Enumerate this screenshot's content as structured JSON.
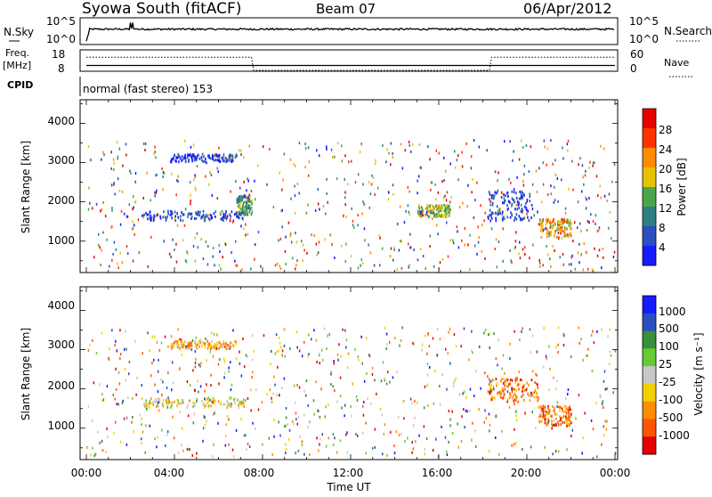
{
  "header": {
    "station": "Syowa South (fitACF)",
    "beam": "Beam 07",
    "date": "06/Apr/2012"
  },
  "noise_panel": {
    "left_label": "N.Sky",
    "right_label": "N.Search",
    "left_ticks": [
      "10^5",
      "10^0"
    ],
    "right_ticks": [
      "10^5",
      "10^0"
    ]
  },
  "freq_panel": {
    "left_label_1": "Freq.",
    "left_label_2": "[MHz]",
    "right_label": "Nave",
    "left_ticks": [
      "18",
      "8"
    ],
    "right_ticks": [
      "60",
      "0"
    ]
  },
  "cpid": {
    "label": "CPID",
    "mode": "normal (fast stereo) 153"
  },
  "power_panel": {
    "ylabel": "Slant Range [km]",
    "yticks": [
      "4000",
      "3000",
      "2000",
      "1000"
    ],
    "colorbar_label": "Power [dB]",
    "colorbar_ticks": [
      "28",
      "24",
      "20",
      "16",
      "12",
      "8",
      "4"
    ],
    "colors": [
      "#1a1aff",
      "#2a4fbf",
      "#2f7f7f",
      "#4aa64a",
      "#e6c200",
      "#ff8c00",
      "#ff3300",
      "#e60000"
    ]
  },
  "velocity_panel": {
    "ylabel": "Slant Range [km]",
    "yticks": [
      "4000",
      "3000",
      "2000",
      "1000"
    ],
    "colorbar_label": "Velocity [m s⁻¹]",
    "colorbar_ticks": [
      "1000",
      "500",
      "100",
      "25",
      "-25",
      "-100",
      "-500",
      "-1000"
    ],
    "colors": [
      "#1a1aff",
      "#2a4fbf",
      "#3a8f3a",
      "#66cc33",
      "#c8c8c8",
      "#f5d000",
      "#ff8c00",
      "#ff5500",
      "#e60000"
    ]
  },
  "xaxis": {
    "label": "Time UT",
    "ticks": [
      "00:00",
      "04:00",
      "08:00",
      "12:00",
      "16:00",
      "20:00",
      "00:00"
    ]
  },
  "chart_data": [
    {
      "type": "line",
      "title": "Syowa South (fitACF) Beam 07 06/Apr/2012",
      "series": [
        {
          "name": "N.Sky",
          "x_hours": [
            0,
            0.2,
            2.0,
            2.2,
            3.0,
            8.0,
            12.0,
            16.0,
            20.0,
            24.0
          ],
          "values_log10": [
            0.5,
            3.0,
            4.2,
            3.2,
            3.0,
            2.9,
            2.8,
            2.9,
            3.0,
            3.1
          ]
        }
      ],
      "ylim_log10": [
        0,
        5
      ]
    },
    {
      "type": "line",
      "series": [
        {
          "name": "Freq.",
          "x_hours": [
            0,
            24
          ],
          "values": [
            10.5,
            10.5
          ]
        },
        {
          "name": "Nave",
          "x_hours": [
            0,
            7.5,
            7.6,
            18.3,
            18.4,
            24
          ],
          "values": [
            40,
            40,
            0,
            0,
            40,
            40
          ]
        }
      ],
      "ylim": [
        8,
        18
      ]
    },
    {
      "type": "heatmap",
      "ylabel": "Slant Range [km]",
      "xlabel": "Time UT",
      "xlim_hours": [
        0,
        24
      ],
      "ylim_km": [
        200,
        4600
      ],
      "colorbar": "Power [dB]",
      "colorbar_range": [
        0,
        30
      ],
      "clusters": [
        {
          "t": [
            3.8,
            6.8
          ],
          "r": [
            3050,
            3250
          ],
          "level": 1
        },
        {
          "t": [
            2.5,
            7.2
          ],
          "r": [
            1550,
            1800
          ],
          "level": 1
        },
        {
          "t": [
            6.8,
            7.5
          ],
          "r": [
            1700,
            2200
          ],
          "level": 3
        },
        {
          "t": [
            15.0,
            16.5
          ],
          "r": [
            1650,
            1950
          ],
          "level": 4
        },
        {
          "t": [
            18.2,
            20.2
          ],
          "r": [
            1550,
            2300
          ],
          "level": 1
        },
        {
          "t": [
            20.5,
            22.0
          ],
          "r": [
            1100,
            1600
          ],
          "level": 5
        }
      ]
    },
    {
      "type": "heatmap",
      "ylabel": "Slant Range [km]",
      "xlabel": "Time UT",
      "xlim_hours": [
        0,
        24
      ],
      "ylim_km": [
        200,
        4600
      ],
      "colorbar": "Velocity [m s⁻¹]",
      "colorbar_range": [
        -1000,
        1000
      ],
      "clusters": [
        {
          "t": [
            3.8,
            6.8
          ],
          "r": [
            3050,
            3250
          ],
          "level": 6
        },
        {
          "t": [
            2.5,
            7.2
          ],
          "r": [
            1550,
            1800
          ],
          "level": 5
        },
        {
          "t": [
            18.2,
            20.5
          ],
          "r": [
            1700,
            2300
          ],
          "level": 7
        },
        {
          "t": [
            20.5,
            22.0
          ],
          "r": [
            1100,
            1600
          ],
          "level": 7
        }
      ]
    }
  ]
}
